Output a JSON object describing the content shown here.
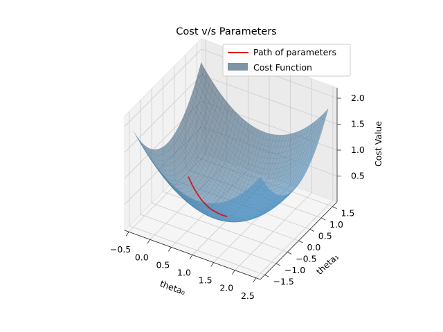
{
  "chart_data": {
    "type": "surface3d",
    "title": "Cost v/s Parameters",
    "xlabel": "theta₀",
    "ylabel": "theta₁",
    "zlabel": "Cost Value",
    "xlim": [
      -0.6,
      2.6
    ],
    "ylim": [
      -1.7,
      1.7
    ],
    "zlim": [
      0.0,
      2.2
    ],
    "xticks": [
      -0.5,
      0.0,
      0.5,
      1.0,
      1.5,
      2.0,
      2.5
    ],
    "yticks": [
      -1.5,
      -1.0,
      -0.5,
      0.0,
      0.5,
      1.0,
      1.5
    ],
    "zticks": [
      0.5,
      1.0,
      1.5,
      2.0
    ],
    "surface": {
      "name": "Cost Function",
      "function": "0.4*((theta0-1)^2 + theta1^2) + 0.06",
      "x_range": [
        -0.5,
        2.5
      ],
      "y_range": [
        -1.5,
        1.5
      ],
      "color": "#1f77b4"
    },
    "path": {
      "name": "Path of parameters",
      "color": "#dd0000",
      "theta0": [
        0.0,
        0.1,
        0.2,
        0.3,
        0.4,
        0.5,
        0.6,
        0.7,
        0.8,
        0.9,
        1.0
      ],
      "theta1": [
        0.0,
        -0.05,
        -0.1,
        -0.14,
        -0.18,
        -0.2,
        -0.22,
        -0.22,
        -0.21,
        -0.2,
        -0.18
      ]
    },
    "legend": {
      "position": "top-right",
      "entries": [
        "Path of parameters",
        "Cost Function"
      ]
    },
    "grid": true
  }
}
